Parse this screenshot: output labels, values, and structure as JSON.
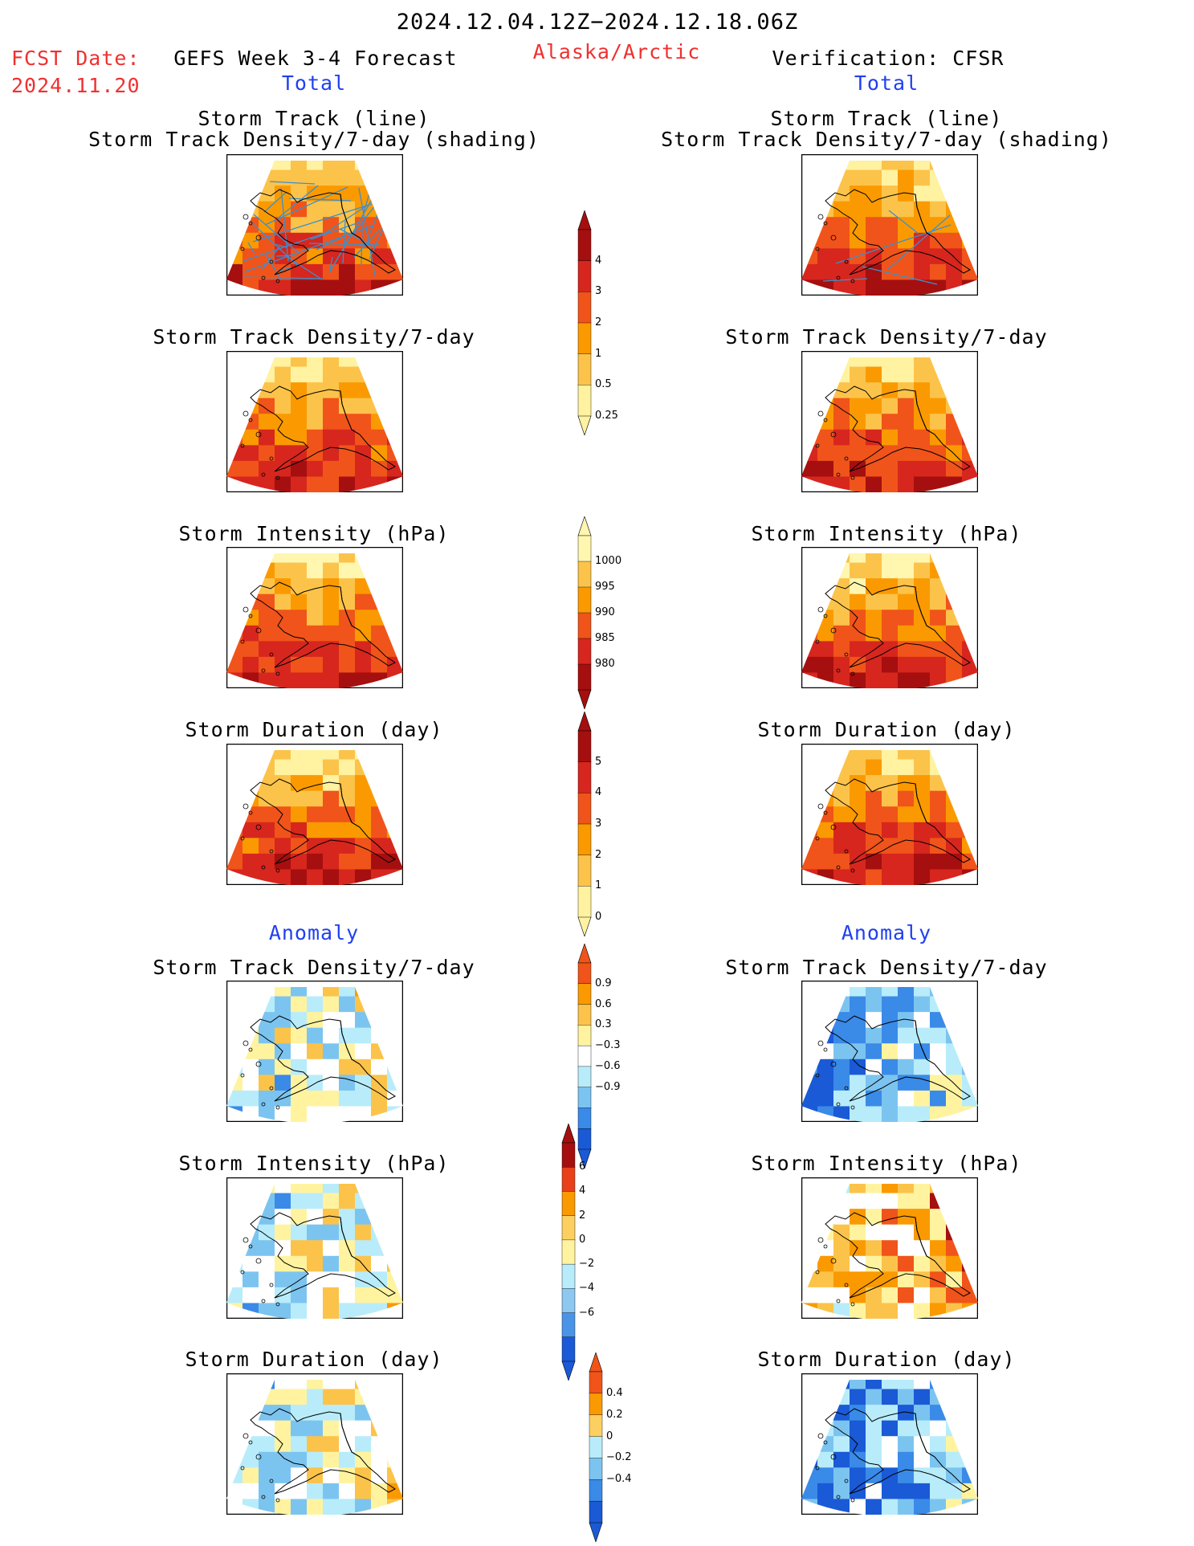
{
  "header": {
    "period": "2024.12.04.12Z−2024.12.18.06Z",
    "fcst_label": "FCST Date:",
    "fcst_date": "2024.11.20",
    "forecast_title": "GEFS Week 3-4 Forecast",
    "region": "Alaska/Arctic",
    "verification": "Verification: CFSR"
  },
  "sections": {
    "total": "Total",
    "anomaly": "Anomaly"
  },
  "panel_titles": {
    "track_line": "Storm Track (line)",
    "track_shading": "Storm Track Density/7-day (shading)",
    "density": "Storm Track Density/7-day",
    "intensity": "Storm Intensity (hPa)",
    "duration": "Storm Duration (day)"
  },
  "colorbars": {
    "density_total": {
      "labels": [
        "4",
        "3",
        "2",
        "1",
        "0.5",
        "0.25"
      ],
      "colors": [
        "#a50f0f",
        "#d7261e",
        "#f0541a",
        "#fa9a00",
        "#fcc34a",
        "#fff2a0"
      ]
    },
    "intensity_total": {
      "labels": [
        "1000",
        "995",
        "990",
        "985",
        "980"
      ],
      "colors": [
        "#fff6b0",
        "#fcc34a",
        "#fa9a00",
        "#f0541a",
        "#d7261e",
        "#a50f0f"
      ]
    },
    "duration_total": {
      "labels": [
        "5",
        "4",
        "3",
        "2",
        "1",
        "0"
      ],
      "colors": [
        "#a50f0f",
        "#d7261e",
        "#f0541a",
        "#fa9a00",
        "#fcc34a",
        "#fff2a0"
      ]
    },
    "density_anom": {
      "labels": [
        "0.9",
        "0.6",
        "0.3",
        "−0.3",
        "−0.6",
        "−0.9"
      ],
      "colors": [
        "#f0541a",
        "#fa9a00",
        "#fcc34a",
        "#fff3a0",
        "#ffffff",
        "#b8ecfa",
        "#7cc4f0",
        "#3a8ae8",
        "#1a5ad6"
      ]
    },
    "intensity_anom": {
      "labels": [
        "6",
        "4",
        "2",
        "0",
        "−2",
        "−4",
        "−6"
      ],
      "colors": [
        "#a50f0f",
        "#e8401a",
        "#fa9a00",
        "#fcd060",
        "#fff3a0",
        "#b8ecfa",
        "#8cc8f0",
        "#4a94e8",
        "#1a5ad6"
      ]
    },
    "duration_anom": {
      "labels": [
        "0.4",
        "0.2",
        "0",
        "−0.2",
        "−0.4"
      ],
      "colors": [
        "#f0541a",
        "#fa9a00",
        "#fcd060",
        "#b8ecfa",
        "#7cc4f0",
        "#3a8ae8",
        "#1a5ad6"
      ]
    }
  }
}
